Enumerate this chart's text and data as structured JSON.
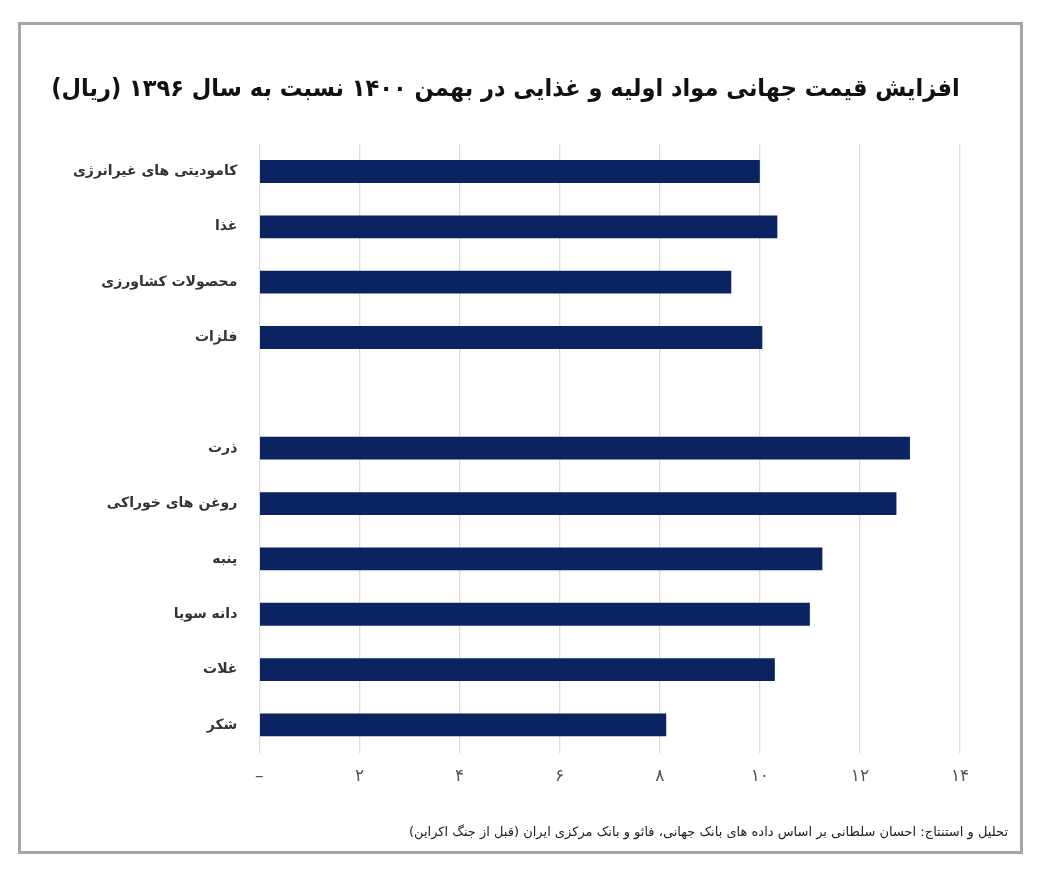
{
  "chart_data": {
    "type": "bar",
    "orientation": "horizontal",
    "title": "افزایش قیمت جهانی مواد اولیه و غذایی در بهمن ۱۴۰۰ نسبت به سال ۱۳۹۶ (ریال)",
    "categories": [
      "کامودیتی های غیرانرژی",
      "غذا",
      "محصولات کشاورزی",
      "فلزات",
      null,
      "ذرت",
      "روغن های خوراکی",
      "پنبه",
      "دانه سویا",
      "غلات",
      "شکر"
    ],
    "values": [
      10.0,
      10.35,
      9.43,
      10.05,
      null,
      13.0,
      12.73,
      11.25,
      11.0,
      10.3,
      8.13
    ],
    "color": "#0b2360",
    "xlim": [
      0,
      14
    ],
    "xticks": [
      {
        "value": 0,
        "label": "–"
      },
      {
        "value": 2,
        "label": "۲"
      },
      {
        "value": 4,
        "label": "۴"
      },
      {
        "value": 6,
        "label": "۶"
      },
      {
        "value": 8,
        "label": "۸"
      },
      {
        "value": 10,
        "label": "۱۰"
      },
      {
        "value": 12,
        "label": "۱۲"
      },
      {
        "value": 14,
        "label": "۱۴"
      }
    ],
    "grid": "x",
    "annotations": [
      "تحلیل و استنتاج: احسان سلطانی بر اساس داده های بانک جهانی، فائو و بانک مرکزی ایران (قبل از جنگ اکراین)"
    ]
  }
}
